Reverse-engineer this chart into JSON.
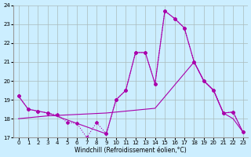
{
  "background_color": "#cceeff",
  "line_color": "#aa00aa",
  "grid_color": "#aabbbb",
  "xlabel": "Windchill (Refroidissement éolien,°C)",
  "xlim": [
    -0.5,
    23.5
  ],
  "ylim": [
    17,
    24
  ],
  "yticks": [
    17,
    18,
    19,
    20,
    21,
    22,
    23,
    24
  ],
  "xticks": [
    0,
    1,
    2,
    3,
    4,
    5,
    6,
    7,
    8,
    9,
    10,
    11,
    12,
    13,
    14,
    15,
    16,
    17,
    18,
    19,
    20,
    21,
    22,
    23
  ],
  "lines": [
    {
      "x": [
        0,
        1,
        2,
        3,
        4,
        5,
        6,
        7,
        8,
        9,
        10,
        11,
        12,
        13,
        14,
        15,
        16,
        17,
        18,
        19,
        20,
        21,
        22,
        23
      ],
      "y": [
        19.2,
        18.5,
        18.4,
        18.3,
        18.2,
        17.8,
        17.75,
        17.0,
        17.8,
        17.2,
        19.0,
        19.5,
        21.5,
        21.5,
        19.85,
        23.7,
        23.3,
        22.8,
        21.0,
        20.0,
        19.5,
        18.3,
        18.35,
        17.3
      ],
      "marker": true,
      "linestyle": "dotted"
    },
    {
      "x": [
        0,
        1,
        2,
        3,
        9,
        10,
        11,
        12,
        13,
        14,
        15,
        16,
        17,
        18,
        19,
        20,
        21,
        22,
        23
      ],
      "y": [
        19.2,
        18.5,
        18.4,
        18.3,
        17.2,
        19.0,
        19.5,
        21.5,
        21.5,
        19.85,
        23.7,
        23.3,
        22.8,
        21.0,
        20.0,
        19.5,
        18.3,
        18.35,
        17.3
      ],
      "marker": true,
      "linestyle": "solid"
    },
    {
      "x": [
        0,
        1,
        2,
        3,
        9,
        14,
        18,
        19,
        20,
        21,
        22,
        23
      ],
      "y": [
        18.0,
        18.05,
        18.1,
        18.15,
        18.3,
        18.55,
        21.0,
        20.0,
        19.5,
        18.3,
        18.0,
        17.3
      ],
      "marker": false,
      "linestyle": "solid"
    }
  ]
}
